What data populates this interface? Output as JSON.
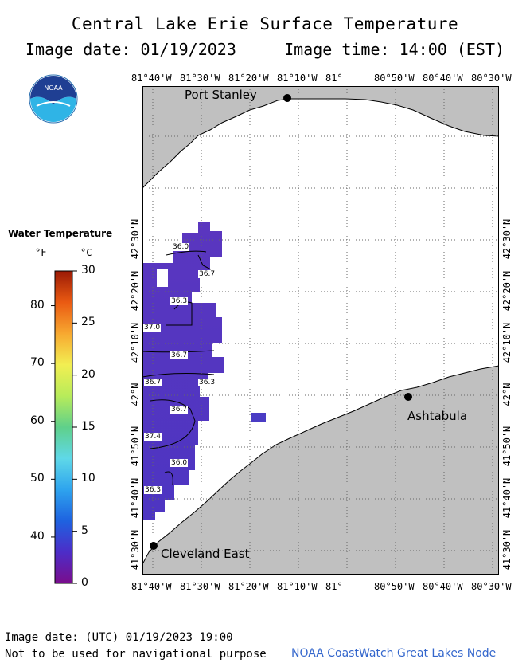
{
  "header": {
    "title": "Central Lake Erie Surface Temperature",
    "date_label": "Image date: 01/19/2023",
    "time_label": "Image time: 14:00 (EST)"
  },
  "map": {
    "lon_labels": [
      "81°40'W",
      "81°30'W",
      "81°20'W",
      "81°10'W",
      "81°",
      "80°50'W",
      "80°40'W",
      "80°30'W"
    ],
    "lat_labels": [
      "41°30'N",
      "41°40'N",
      "41°50'N",
      "42°N",
      "42°10'N",
      "42°20'N",
      "42°30'N"
    ],
    "cities": {
      "port_stanley": "Port Stanley",
      "ashtabula": "Ashtabula",
      "cleveland": "Cleveland East"
    },
    "contour_labels": [
      "36.0",
      "36.7",
      "36.3",
      "37.0",
      "36.7",
      "36.7",
      "36.3",
      "36.7",
      "37.4",
      "36.0",
      "36.3"
    ],
    "colors": {
      "land": "#c0c0c0",
      "water_cold": "#5533b8",
      "water_mid": "#4a3cc4",
      "grid": "#777777"
    }
  },
  "legend": {
    "title": "Water Temperature",
    "unit_f": "°F",
    "unit_c": "°C",
    "fahrenheit_ticks": [
      "80",
      "70",
      "60",
      "50",
      "40"
    ],
    "celsius_ticks": [
      "30",
      "25",
      "20",
      "15",
      "10",
      "5",
      "0"
    ]
  },
  "logo": {
    "text": "NOAA"
  },
  "footer": {
    "utc_date": "Image date: (UTC) 01/19/2023  19:00",
    "disclaimer": "Not to be used for navigational purpose",
    "credit": "NOAA CoastWatch Great Lakes Node"
  }
}
